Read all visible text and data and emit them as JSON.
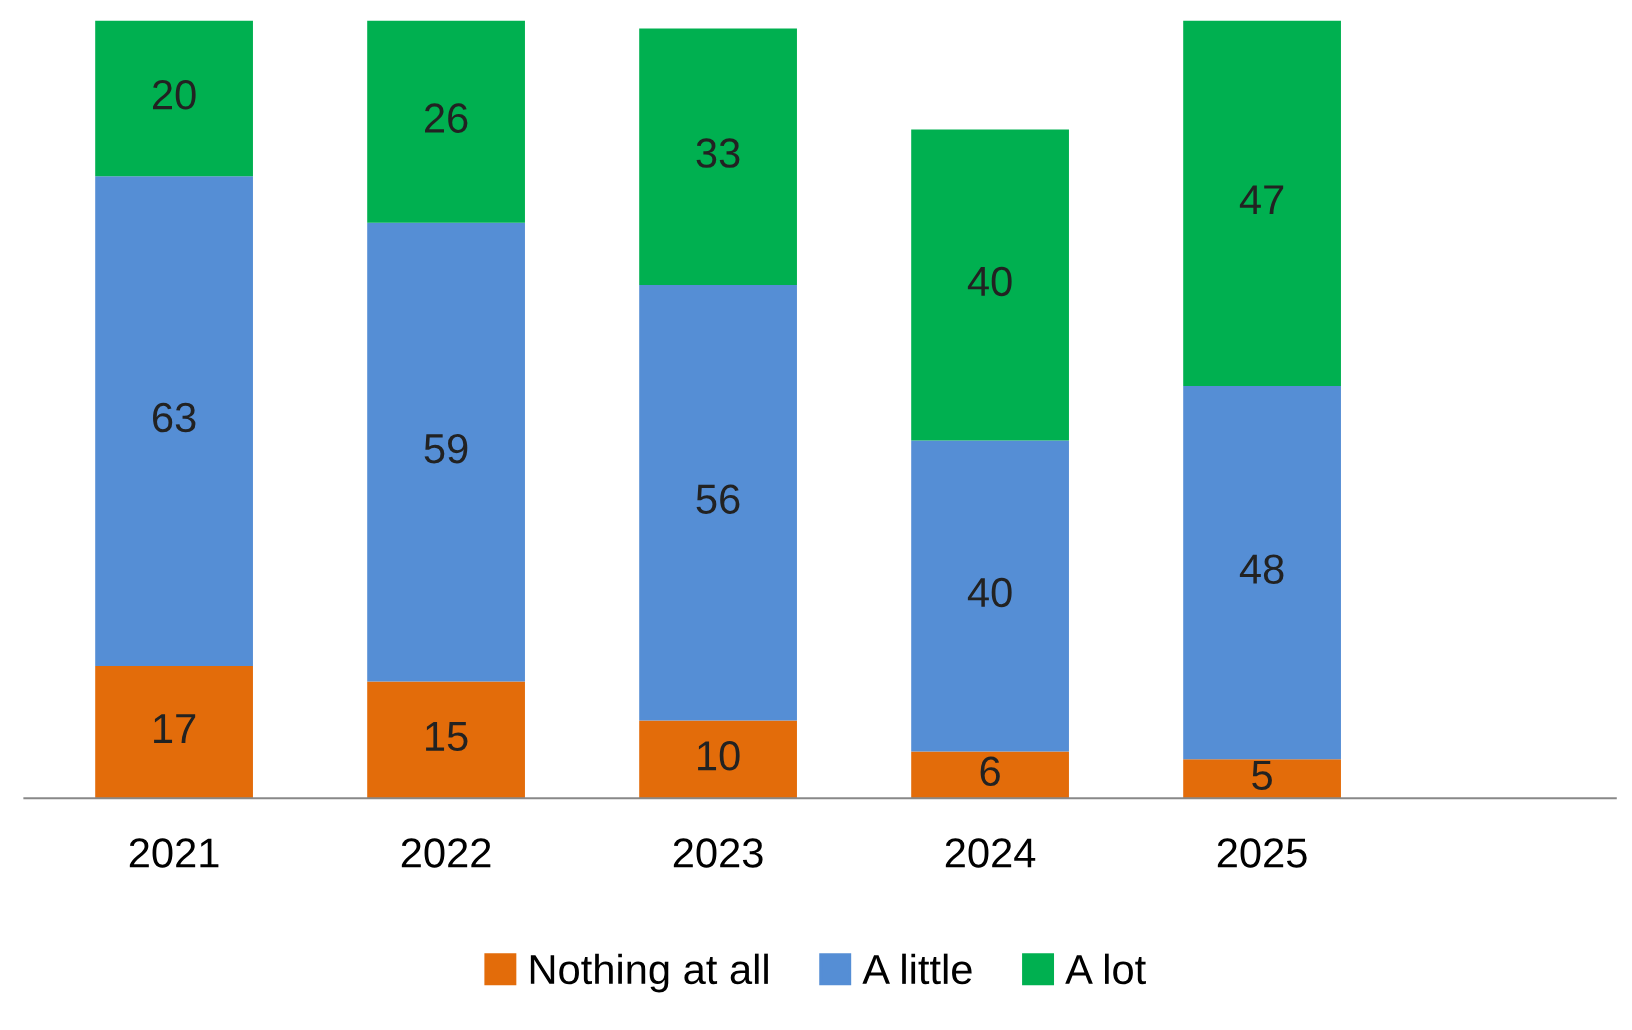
{
  "chart_data": {
    "type": "bar",
    "stacked": true,
    "data_labels": true,
    "legend": "bottom",
    "categories": [
      "2021",
      "2022",
      "2023",
      "2024",
      "2025"
    ],
    "series": [
      {
        "name": "Nothing at all",
        "color": "#e36c0a",
        "values": [
          17,
          15,
          10,
          6,
          5
        ]
      },
      {
        "name": "A little",
        "color": "#558ed5",
        "values": [
          63,
          59,
          56,
          40,
          48
        ]
      },
      {
        "name": "A lot",
        "color": "#00b050",
        "values": [
          20,
          26,
          33,
          40,
          47
        ]
      }
    ]
  }
}
